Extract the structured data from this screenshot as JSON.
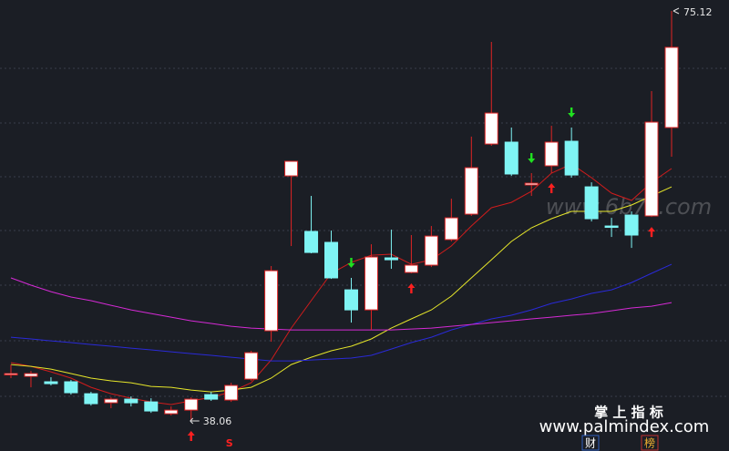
{
  "chart_data": {
    "type": "candlestick",
    "open": [
      42.3,
      42.09,
      41.6,
      41.6,
      40.52,
      39.7,
      40.03,
      39.78,
      38.71,
      39.04,
      40.44,
      39.95,
      41.84,
      46.21,
      60.21,
      55.19,
      54.2,
      49.91,
      48.1,
      52.8,
      51.48,
      52.14,
      54.45,
      56.75,
      63.09,
      63.26,
      59.39,
      61.12,
      63.34,
      59.22,
      55.68,
      56.67,
      56.59,
      64.58
    ],
    "high": [
      43.16,
      42.58,
      42.01,
      41.76,
      40.69,
      40.19,
      40.28,
      40.11,
      39.37,
      40.19,
      40.69,
      41.51,
      44.4,
      52.06,
      61.53,
      58.4,
      55.27,
      50.99,
      54.03,
      55.35,
      54.86,
      55.68,
      58.15,
      63.76,
      72.32,
      64.58,
      60.46,
      64.74,
      64.58,
      59.63,
      56.42,
      57.0,
      67.87,
      75.12
    ],
    "low": [
      41.93,
      41.1,
      41.27,
      40.44,
      39.45,
      39.21,
      39.37,
      38.79,
      38.55,
      38.06,
      39.87,
      39.78,
      41.68,
      45.22,
      53.87,
      53.21,
      50.9,
      46.95,
      46.29,
      51.81,
      51.4,
      51.97,
      54.28,
      56.59,
      62.93,
      60.21,
      58.4,
      60.46,
      60.05,
      56.09,
      54.69,
      53.7,
      56.5,
      61.94
    ],
    "close": [
      42.34,
      42.34,
      41.43,
      40.61,
      39.62,
      40.03,
      39.7,
      38.96,
      39.04,
      40.03,
      40.03,
      41.27,
      44.23,
      51.64,
      61.53,
      53.29,
      50.99,
      48.1,
      52.88,
      52.63,
      52.14,
      54.77,
      56.42,
      60.95,
      65.89,
      60.38,
      59.55,
      63.26,
      60.29,
      56.34,
      55.6,
      54.86,
      65.07,
      71.83
    ],
    "up_color": "#e02424",
    "down_color": "#7ff4f4",
    "lines": [
      {
        "color": "#d01c1c",
        "values": [
          43.33,
          42.99,
          42.5,
          41.93,
          41.1,
          40.52,
          40.11,
          39.78,
          39.54,
          39.87,
          40.19,
          40.69,
          41.51,
          43.57,
          46.45,
          48.93,
          51.4,
          52.39,
          53.04,
          53.13,
          52.22,
          52.63,
          53.87,
          55.68,
          57.33,
          57.82,
          58.81,
          60.46,
          61.28,
          60.05,
          58.65,
          57.99,
          59.63,
          60.87
        ]
      },
      {
        "color": "#e6e62a",
        "values": [
          43.16,
          42.99,
          42.75,
          42.34,
          41.93,
          41.68,
          41.51,
          41.18,
          41.1,
          40.85,
          40.69,
          40.85,
          41.1,
          41.93,
          43.16,
          43.82,
          44.4,
          44.81,
          45.47,
          46.45,
          47.28,
          48.1,
          49.34,
          50.99,
          52.63,
          54.28,
          55.52,
          56.34,
          57.0,
          57.0,
          57.0,
          57.58,
          58.4,
          59.22
        ]
      },
      {
        "color": "#2a2ad8",
        "values": [
          45.63,
          45.47,
          45.3,
          45.14,
          44.97,
          44.81,
          44.64,
          44.48,
          44.31,
          44.15,
          43.99,
          43.82,
          43.65,
          43.49,
          43.49,
          43.57,
          43.65,
          43.74,
          43.99,
          44.56,
          45.14,
          45.63,
          46.29,
          46.78,
          47.28,
          47.61,
          48.1,
          48.68,
          49.09,
          49.59,
          49.91,
          50.57,
          51.4,
          52.22
        ]
      },
      {
        "color": "#d52ad5",
        "values": [
          50.99,
          50.33,
          49.75,
          49.26,
          48.93,
          48.51,
          48.1,
          47.77,
          47.44,
          47.11,
          46.87,
          46.62,
          46.45,
          46.37,
          46.29,
          46.29,
          46.29,
          46.29,
          46.29,
          46.29,
          46.37,
          46.45,
          46.62,
          46.78,
          46.95,
          47.11,
          47.28,
          47.44,
          47.61,
          47.77,
          48.02,
          48.27,
          48.43,
          48.76
        ]
      }
    ],
    "buy_signals": [
      9,
      20,
      27,
      32
    ],
    "sell_signals": [
      17,
      26,
      28
    ],
    "buy_color": "#ff2020",
    "sell_color": "#20e020",
    "signal_text": "S"
  },
  "branding": {
    "watermark": "www.6b7z.com",
    "brand": "掌 上 指 标",
    "site": "www.palmindex.com",
    "tab1": "财",
    "tab2": "榜"
  }
}
